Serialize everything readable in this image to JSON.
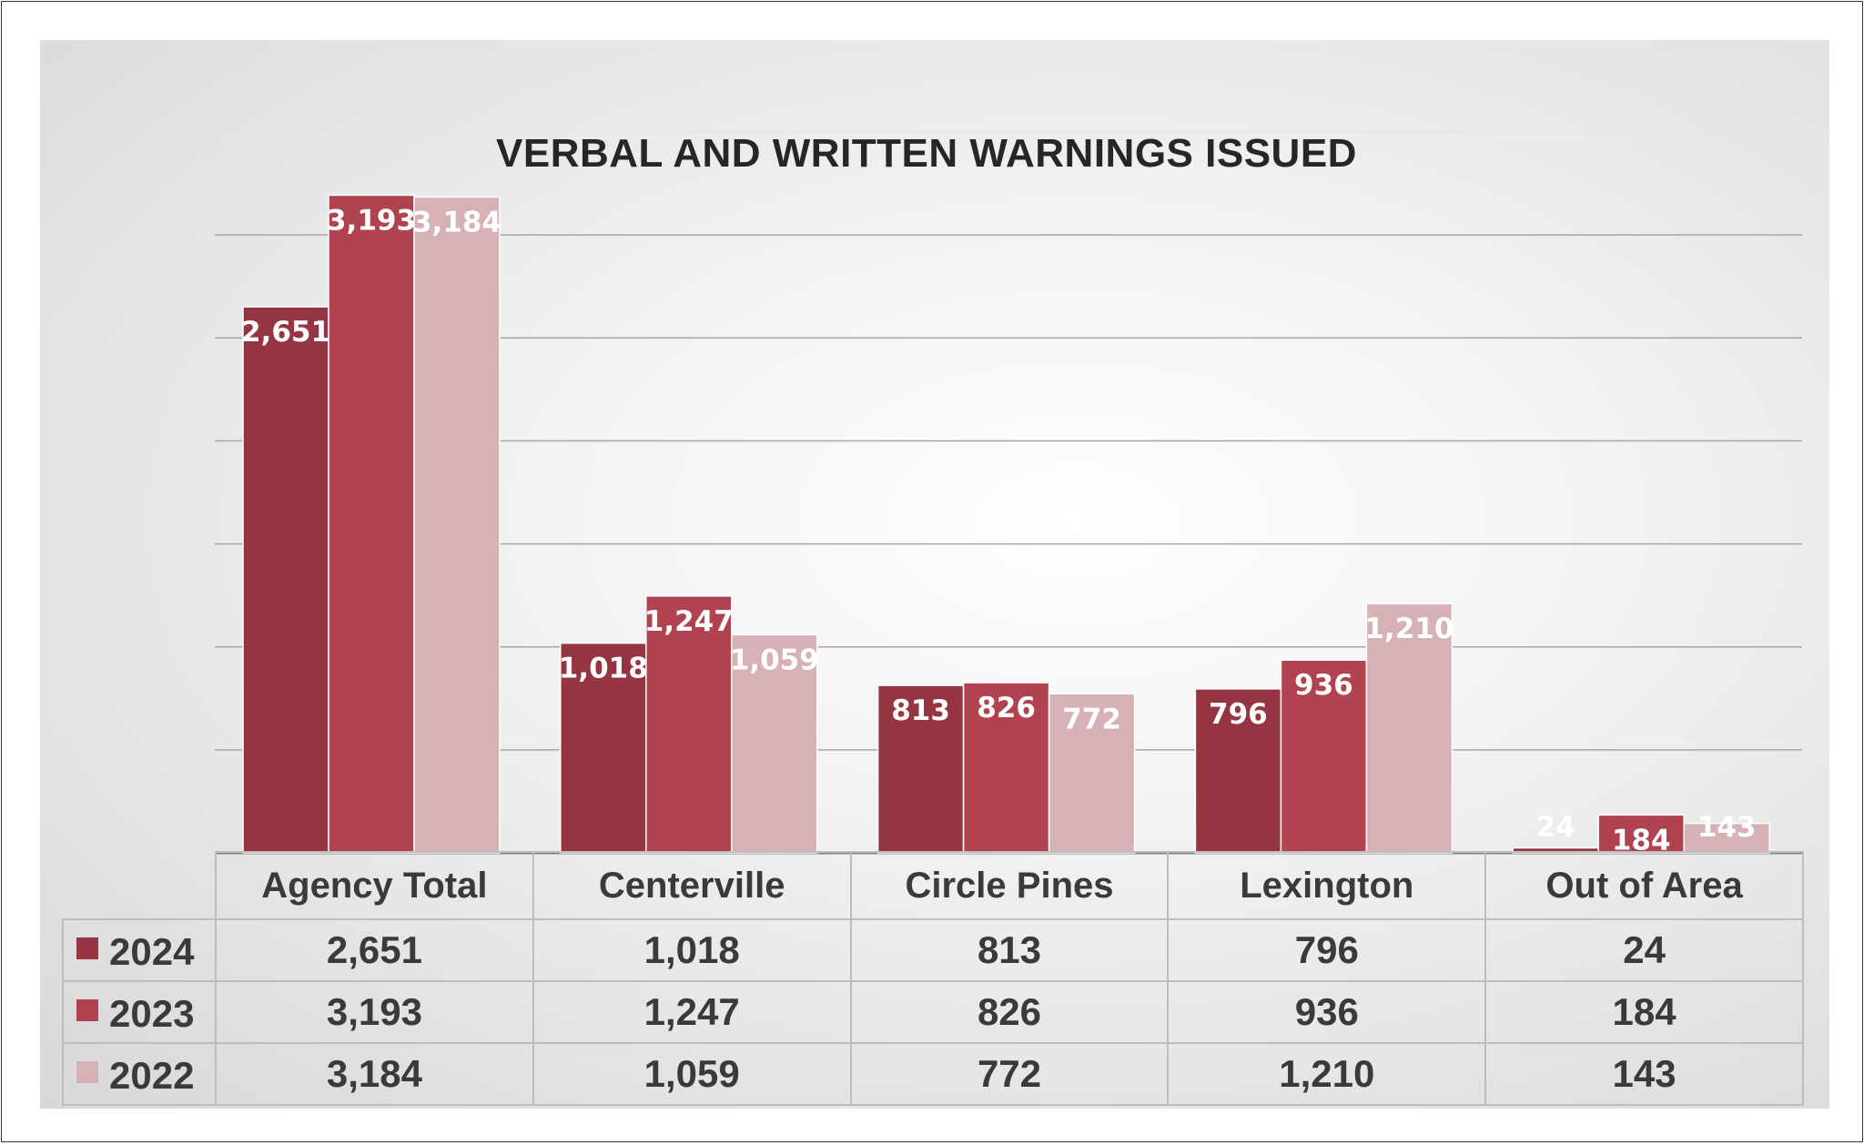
{
  "chart_data": {
    "type": "bar",
    "title": "VERBAL AND WRITTEN WARNINGS ISSUED",
    "categories": [
      "Agency Total",
      "Centerville",
      "Circle Pines",
      "Lexington",
      "Out of Area"
    ],
    "series": [
      {
        "name": "2024",
        "values": [
          2651,
          1018,
          813,
          796,
          24
        ],
        "labels": [
          "2,651",
          "1,018",
          "813",
          "796",
          "24"
        ],
        "color": "#953542"
      },
      {
        "name": "2023",
        "values": [
          3193,
          1247,
          826,
          936,
          184
        ],
        "labels": [
          "3,193",
          "1,247",
          "826",
          "936",
          "184"
        ],
        "color": "#b0434f"
      },
      {
        "name": "2022",
        "values": [
          3184,
          1059,
          772,
          1210,
          143
        ],
        "labels": [
          "3,184",
          "1,059",
          "772",
          "1,210",
          "143"
        ],
        "color": "#d6b1b5"
      }
    ],
    "ylim": [
      0,
      3500
    ],
    "y_axis_labels_shown": false,
    "grid": true,
    "data_table": true,
    "colors": {
      "background_center": "#ffffff",
      "background_edge": "#d6d6d6",
      "gridline": "#a6a6a6",
      "bar_label": "#ffffff"
    }
  }
}
